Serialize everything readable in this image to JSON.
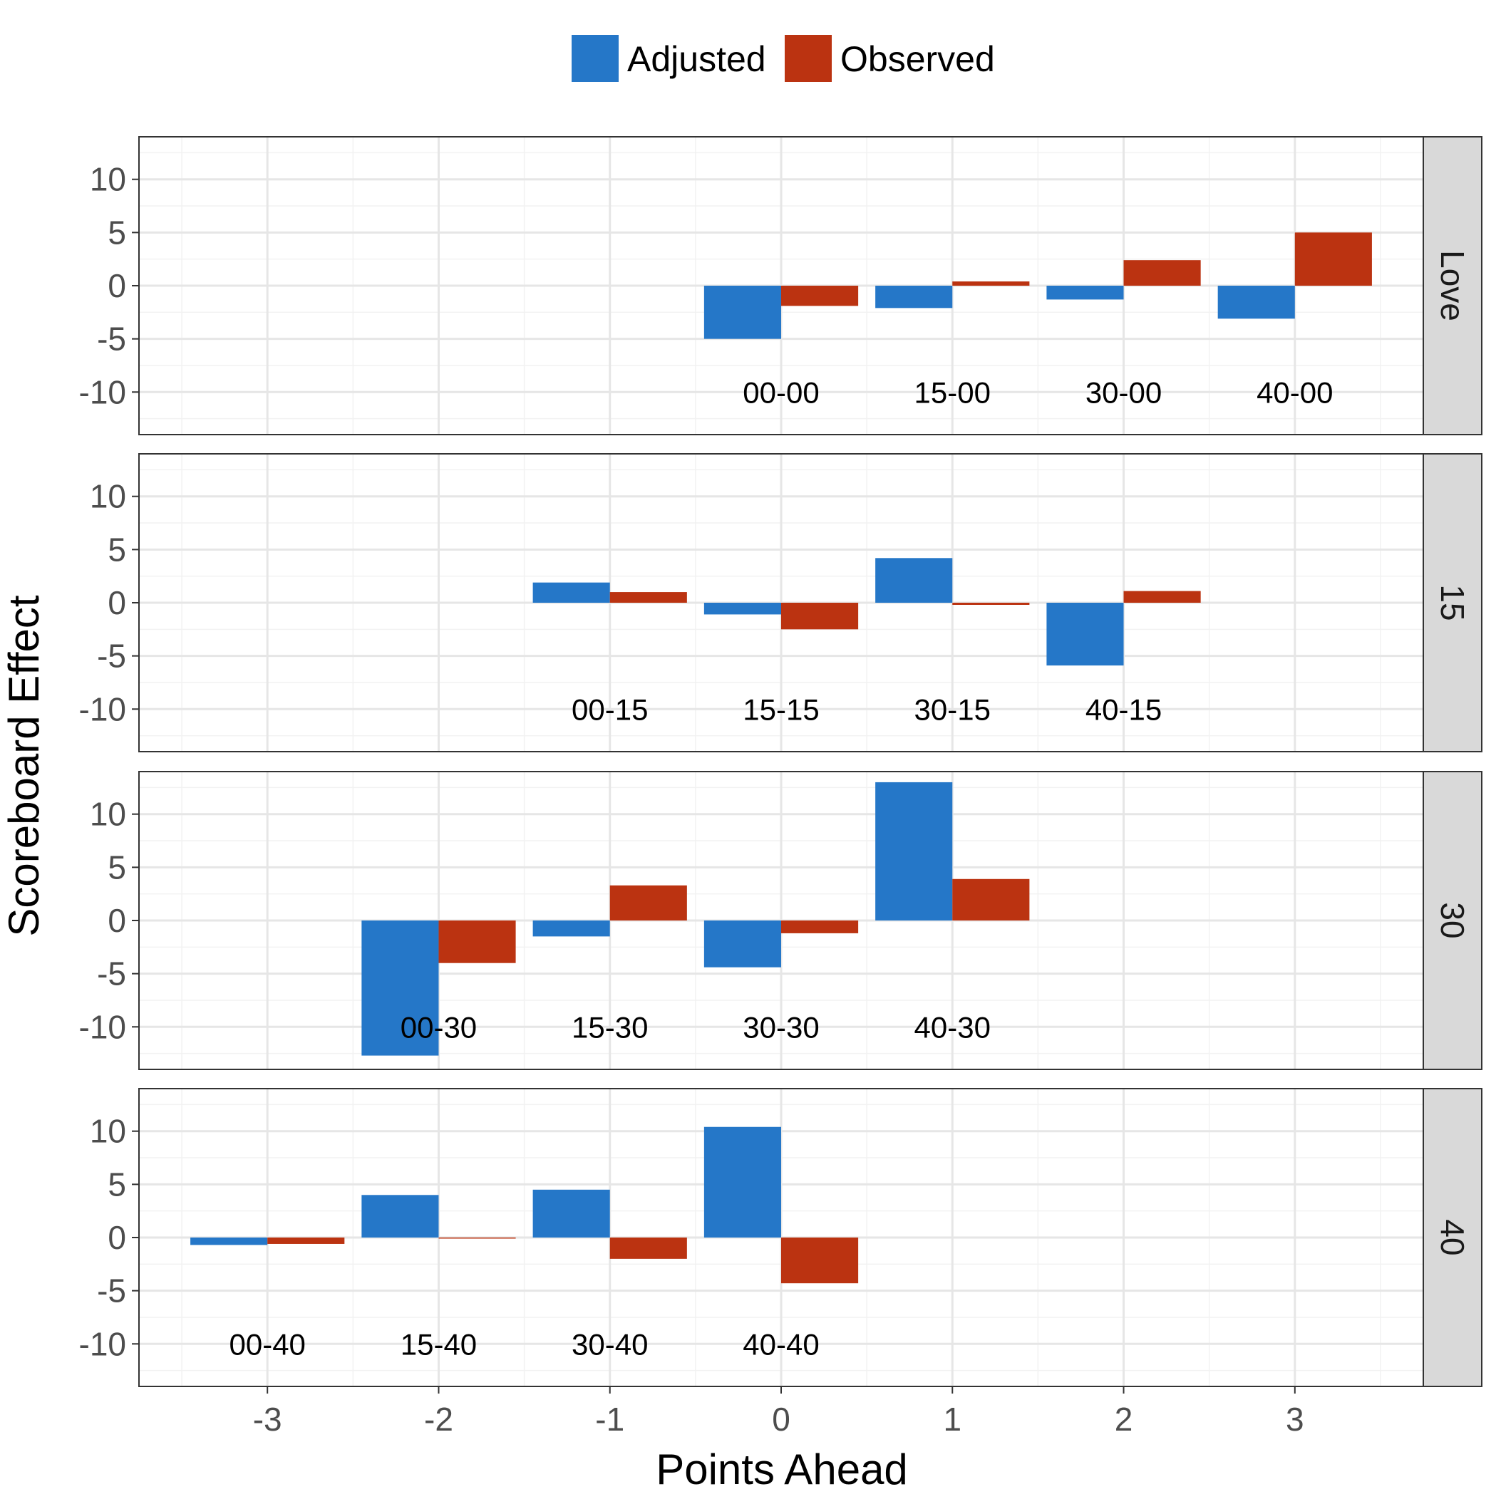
{
  "chart_data": {
    "type": "bar",
    "xlabel": "Points Ahead",
    "ylabel": "Scoreboard Effect",
    "xlim": [
      -3.75,
      3.75
    ],
    "ylim": [
      -14,
      14
    ],
    "x_ticks": [
      -3,
      -2,
      -1,
      0,
      1,
      2,
      3
    ],
    "y_ticks": [
      -10,
      -5,
      0,
      5,
      10
    ],
    "grid": true,
    "legend": {
      "position": "top",
      "entries": [
        "Adjusted",
        "Observed"
      ]
    },
    "colors": {
      "Adjusted": "#2577c8",
      "Observed": "#bb3311"
    },
    "panels": [
      {
        "strip": "Love",
        "bars": [
          {
            "x": 0,
            "label": "00-00",
            "Adjusted": -5.0,
            "Observed": -1.9
          },
          {
            "x": 1,
            "label": "15-00",
            "Adjusted": -2.1,
            "Observed": 0.4
          },
          {
            "x": 2,
            "label": "30-00",
            "Adjusted": -1.3,
            "Observed": 2.4
          },
          {
            "x": 3,
            "label": "40-00",
            "Adjusted": -3.1,
            "Observed": 5.0
          }
        ]
      },
      {
        "strip": "15",
        "bars": [
          {
            "x": -1,
            "label": "00-15",
            "Adjusted": 1.9,
            "Observed": 1.0
          },
          {
            "x": 0,
            "label": "15-15",
            "Adjusted": -1.1,
            "Observed": -2.5
          },
          {
            "x": 1,
            "label": "30-15",
            "Adjusted": 4.2,
            "Observed": -0.2
          },
          {
            "x": 2,
            "label": "40-15",
            "Adjusted": -5.9,
            "Observed": 1.1
          }
        ]
      },
      {
        "strip": "30",
        "bars": [
          {
            "x": -2,
            "label": "00-30",
            "Adjusted": -12.7,
            "Observed": -4.0
          },
          {
            "x": -1,
            "label": "15-30",
            "Adjusted": -1.5,
            "Observed": 3.3
          },
          {
            "x": 0,
            "label": "30-30",
            "Adjusted": -4.4,
            "Observed": -1.2
          },
          {
            "x": 1,
            "label": "40-30",
            "Adjusted": 13.0,
            "Observed": 3.9
          }
        ]
      },
      {
        "strip": "40",
        "bars": [
          {
            "x": -3,
            "label": "00-40",
            "Adjusted": -0.7,
            "Observed": -0.6
          },
          {
            "x": -2,
            "label": "15-40",
            "Adjusted": 4.0,
            "Observed": -0.1
          },
          {
            "x": -1,
            "label": "30-40",
            "Adjusted": 4.5,
            "Observed": -2.0
          },
          {
            "x": 0,
            "label": "40-40",
            "Adjusted": 10.4,
            "Observed": -4.3
          }
        ]
      }
    ]
  }
}
